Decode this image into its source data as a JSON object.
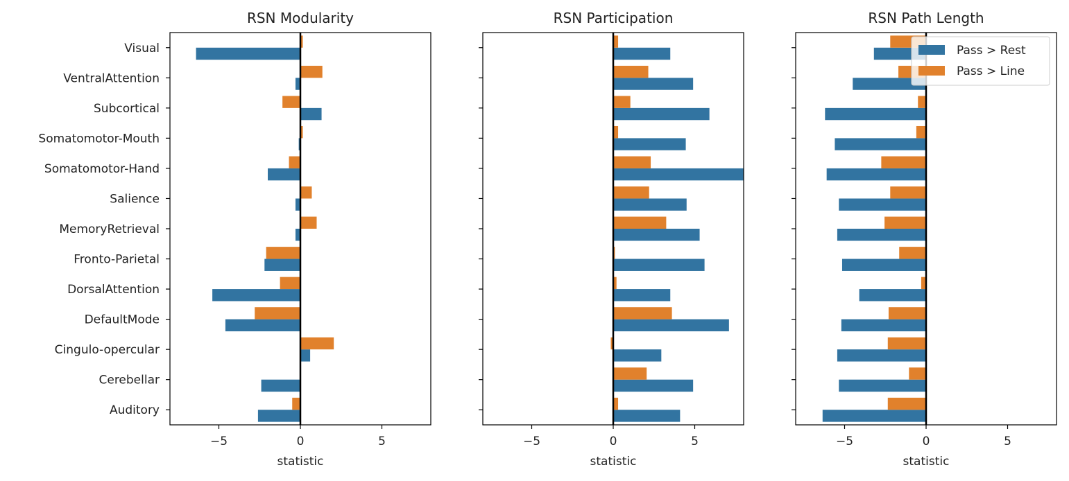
{
  "chart_data": {
    "type": "bar",
    "orientation": "horizontal",
    "categories": [
      "Visual",
      "VentralAttention",
      "Subcortical",
      "Somatomotor-Mouth",
      "Somatomotor-Hand",
      "Salience",
      "MemoryRetrieval",
      "Fronto-Parietal",
      "DorsalAttention",
      "DefaultMode",
      "Cingulo-opercular",
      "Cerebellar",
      "Auditory"
    ],
    "xlim": [
      -8,
      8
    ],
    "xticks": [
      "−5",
      "0",
      "5"
    ],
    "xtick_values": [
      -5,
      0,
      5
    ],
    "grid": false,
    "legend": {
      "placement": "top-right",
      "entries": [
        "Pass > Rest",
        "Pass > Line"
      ]
    },
    "colors": {
      "Pass > Rest": "#3274a1",
      "Pass > Line": "#e1812c"
    },
    "panels": [
      {
        "title": "RSN Modularity",
        "xlabel": "statistic",
        "series": [
          {
            "name": "Pass > Rest",
            "values": [
              -6.4,
              -0.3,
              1.3,
              -0.1,
              -2.0,
              -0.3,
              -0.3,
              -2.2,
              -5.4,
              -4.6,
              0.6,
              -2.4,
              -2.6
            ]
          },
          {
            "name": "Pass > Line",
            "values": [
              0.15,
              1.35,
              -1.1,
              0.15,
              -0.7,
              0.7,
              1.0,
              -2.1,
              -1.25,
              -2.8,
              2.05,
              0.0,
              -0.5
            ]
          }
        ]
      },
      {
        "title": "RSN Participation",
        "xlabel": "statistic",
        "series": [
          {
            "name": "Pass > Rest",
            "values": [
              3.5,
              4.9,
              5.9,
              4.45,
              8.0,
              4.5,
              5.3,
              5.6,
              3.5,
              7.1,
              2.95,
              4.9,
              4.1
            ]
          },
          {
            "name": "Pass > Line",
            "values": [
              0.3,
              2.15,
              1.05,
              0.3,
              2.3,
              2.2,
              3.25,
              0.1,
              0.2,
              3.6,
              -0.15,
              2.05,
              0.3
            ]
          }
        ]
      },
      {
        "title": "RSN Path Length",
        "xlabel": "statistic",
        "series": [
          {
            "name": "Pass > Rest",
            "values": [
              -3.2,
              -4.5,
              -6.2,
              -5.6,
              -6.1,
              -5.35,
              -5.45,
              -5.15,
              -4.1,
              -5.2,
              -5.45,
              -5.35,
              -6.35
            ]
          },
          {
            "name": "Pass > Line",
            "values": [
              -2.2,
              -1.7,
              -0.5,
              -0.6,
              -2.75,
              -2.2,
              -2.55,
              -1.65,
              -0.3,
              -2.3,
              -2.35,
              -1.05,
              -2.35
            ]
          }
        ]
      }
    ]
  }
}
